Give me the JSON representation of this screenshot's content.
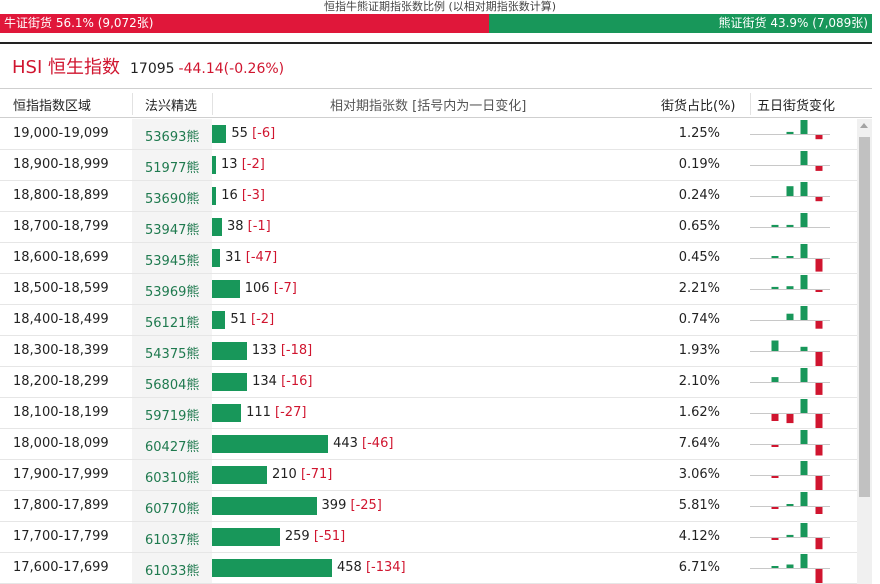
{
  "caption": "恒指牛熊证期指张数比例 (以相对期指张数计算)",
  "ratio": {
    "bull_label": "牛证街货 56.1% (9,072张)",
    "bull_fraction": 0.561,
    "bear_label": "熊证街货 43.9% (7,089张)",
    "bear_fraction": 0.439
  },
  "index": {
    "name": "HSI 恒生指数",
    "price": "17095",
    "change": "-44.14(-0.26%)"
  },
  "table_headers": {
    "range": "恒指指数区域",
    "warrant": "法兴精选",
    "count": "相对期指张数 [括号内为一日变化]",
    "share": "街货占比(%)",
    "trend": "五日街货变化"
  },
  "colors": {
    "bull_red": "#e0173a",
    "bear_green": "#18975a",
    "change_red": "#d0152f"
  },
  "rows": [
    {
      "range": "19,000-19,099",
      "warrant": "53693熊",
      "count": "55",
      "count_value": 55,
      "change": "[-6]",
      "share": "1.25%",
      "trend": [
        0,
        0,
        0.15,
        1,
        -0.3
      ]
    },
    {
      "range": "18,900-18,999",
      "warrant": "51977熊",
      "count": "13",
      "count_value": 13,
      "change": "[-2]",
      "share": "0.19%",
      "trend": [
        0,
        0,
        0,
        1,
        -0.35
      ]
    },
    {
      "range": "18,800-18,899",
      "warrant": "53690熊",
      "count": "16",
      "count_value": 16,
      "change": "[-3]",
      "share": "0.24%",
      "trend": [
        0,
        0,
        0.7,
        1,
        -0.3
      ]
    },
    {
      "range": "18,700-18,799",
      "warrant": "53947熊",
      "count": "38",
      "count_value": 38,
      "change": "[-1]",
      "share": "0.65%",
      "trend": [
        0,
        0.15,
        0.15,
        1,
        0
      ]
    },
    {
      "range": "18,600-18,699",
      "warrant": "53945熊",
      "count": "31",
      "count_value": 31,
      "change": "[-47]",
      "share": "0.45%",
      "trend": [
        0,
        0.1,
        0.1,
        1,
        -0.9
      ]
    },
    {
      "range": "18,500-18,599",
      "warrant": "53969熊",
      "count": "106",
      "count_value": 106,
      "change": "[-7]",
      "share": "2.21%",
      "trend": [
        0,
        0.15,
        0.2,
        1,
        -0.1
      ]
    },
    {
      "range": "18,400-18,499",
      "warrant": "56121熊",
      "count": "51",
      "count_value": 51,
      "change": "[-2]",
      "share": "0.74%",
      "trend": [
        0,
        0,
        0.45,
        1,
        -0.55
      ]
    },
    {
      "range": "18,300-18,399",
      "warrant": "54375熊",
      "count": "133",
      "count_value": 133,
      "change": "[-18]",
      "share": "1.93%",
      "trend": [
        0,
        0.75,
        0,
        0.3,
        -1
      ]
    },
    {
      "range": "18,200-18,299",
      "warrant": "56804熊",
      "count": "134",
      "count_value": 134,
      "change": "[-16]",
      "share": "2.10%",
      "trend": [
        0,
        0.35,
        0,
        1,
        -0.85
      ]
    },
    {
      "range": "18,100-18,199",
      "warrant": "59719熊",
      "count": "111",
      "count_value": 111,
      "change": "[-27]",
      "share": "1.62%",
      "trend": [
        0,
        -0.5,
        -0.65,
        1,
        -1
      ]
    },
    {
      "range": "18,000-18,099",
      "warrant": "60427熊",
      "count": "443",
      "count_value": 443,
      "change": "[-46]",
      "share": "7.64%",
      "trend": [
        0,
        -0.08,
        0,
        1,
        -0.75
      ]
    },
    {
      "range": "17,900-17,999",
      "warrant": "60310熊",
      "count": "210",
      "count_value": 210,
      "change": "[-71]",
      "share": "3.06%",
      "trend": [
        0,
        -0.1,
        0,
        1,
        -1
      ]
    },
    {
      "range": "17,800-17,899",
      "warrant": "60770熊",
      "count": "399",
      "count_value": 399,
      "change": "[-25]",
      "share": "5.81%",
      "trend": [
        0,
        -0.05,
        0.05,
        1,
        -0.5
      ]
    },
    {
      "range": "17,700-17,799",
      "warrant": "61037熊",
      "count": "259",
      "count_value": 259,
      "change": "[-51]",
      "share": "4.12%",
      "trend": [
        0,
        -0.08,
        0.15,
        1,
        -0.8
      ]
    },
    {
      "range": "17,600-17,699",
      "warrant": "61033熊",
      "count": "458",
      "count_value": 458,
      "change": "[-134]",
      "share": "6.71%",
      "trend": [
        0,
        0.1,
        0.25,
        1,
        -1
      ]
    }
  ]
}
